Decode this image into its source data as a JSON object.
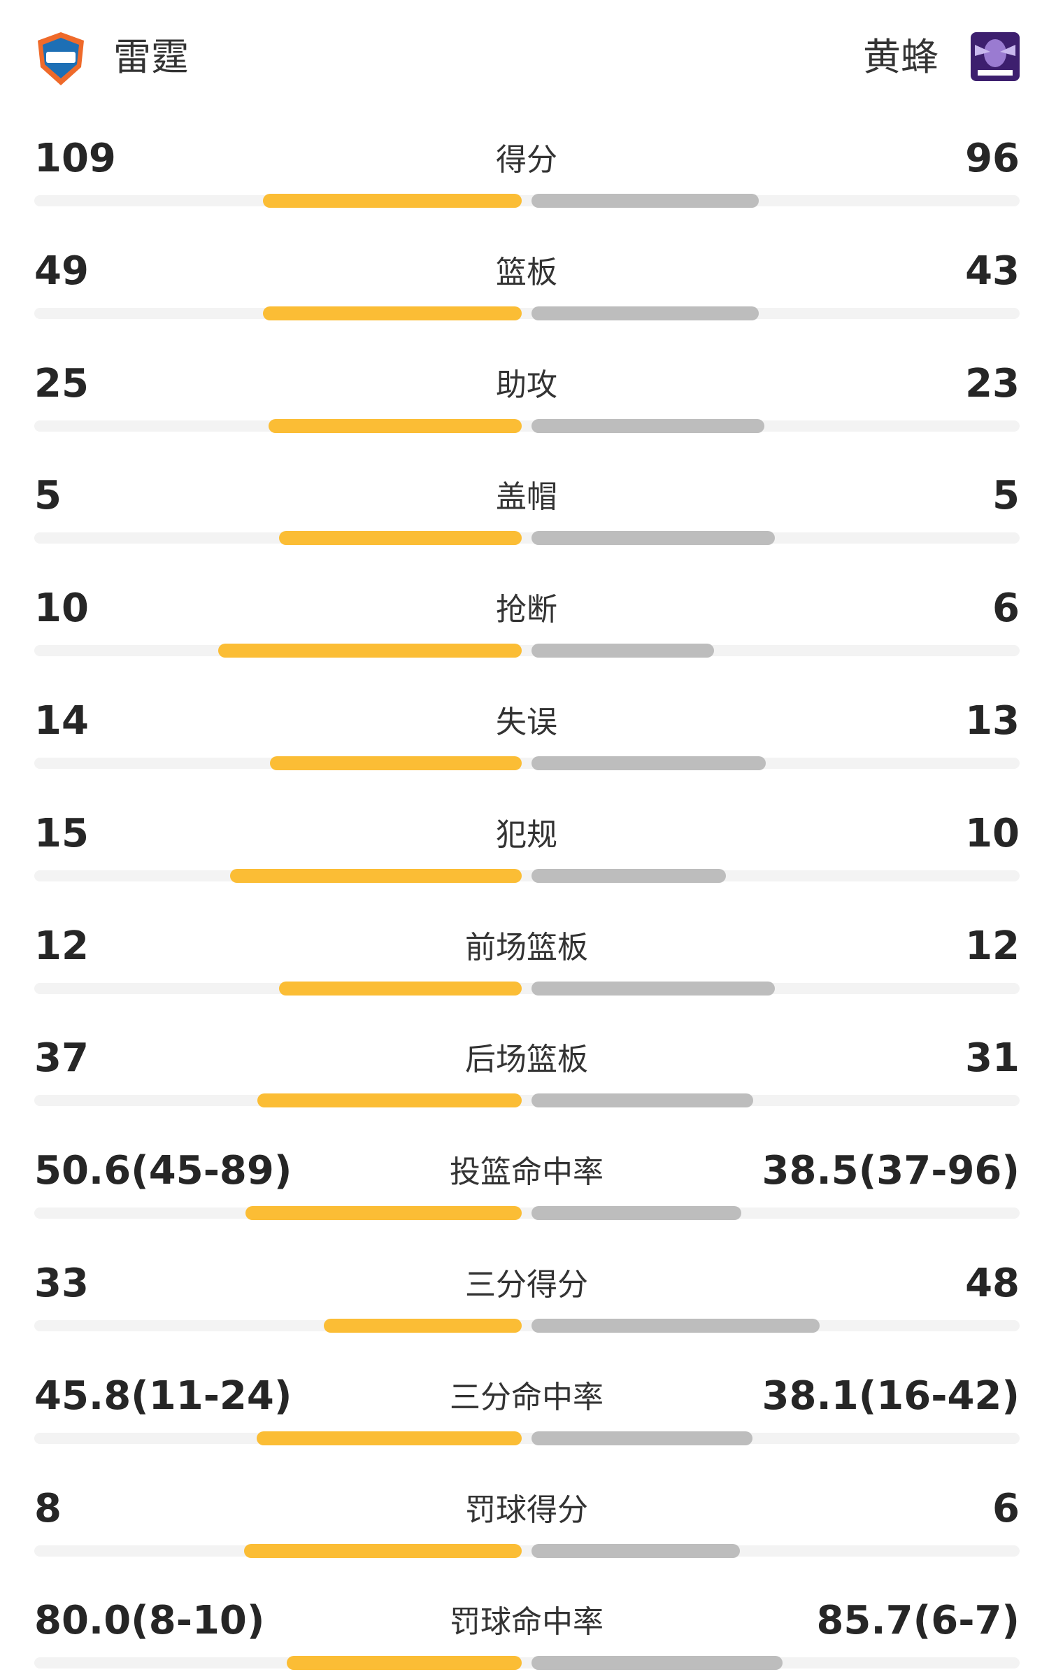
{
  "header": {
    "home_team": "雷霆",
    "away_team": "黄蜂"
  },
  "rows": [
    {
      "label": "得分",
      "home": 109,
      "away": 96
    },
    {
      "label": "篮板",
      "home": 49,
      "away": 43
    },
    {
      "label": "助攻",
      "home": 25,
      "away": 23
    },
    {
      "label": "盖帽",
      "home": 5,
      "away": 5
    },
    {
      "label": "抢断",
      "home": 10,
      "away": 6
    },
    {
      "label": "失误",
      "home": 14,
      "away": 13
    },
    {
      "label": "犯规",
      "home": 15,
      "away": 10
    },
    {
      "label": "前场篮板",
      "home": 12,
      "away": 12
    },
    {
      "label": "后场篮板",
      "home": 37,
      "away": 31
    },
    {
      "label": "投篮命中率",
      "home": {
        "value": 50.6,
        "label": "50.6(45-89)"
      },
      "away": {
        "value": 38.5,
        "label": "38.5(37-96)"
      }
    },
    {
      "label": "三分得分",
      "home": 33,
      "away": 48
    },
    {
      "label": "三分命中率",
      "home": {
        "value": 45.8,
        "label": "45.8(11-24)"
      },
      "away": {
        "value": 38.1,
        "label": "38.1(16-42)"
      }
    },
    {
      "label": "罚球得分",
      "home": 8,
      "away": 6
    },
    {
      "label": "罚球命中率",
      "home": {
        "value": 80.0,
        "label": "80.0(8-10)"
      },
      "away": {
        "value": 85.7,
        "label": "85.7(6-7)"
      }
    }
  ]
}
